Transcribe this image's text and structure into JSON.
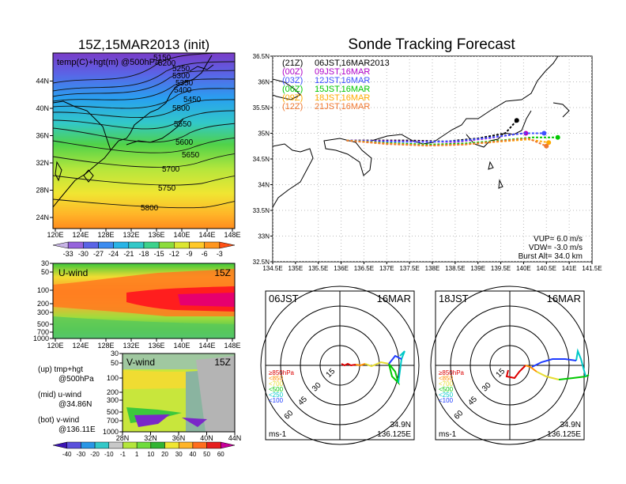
{
  "init_title": "15Z,15MAR2013 (init)",
  "main_title": "Sonde Tracking Forecast",
  "top_map": {
    "label": "temp(C)+hgt(m) @500hPa",
    "x_ticks": [
      "120E",
      "124E",
      "128E",
      "132E",
      "136E",
      "140E",
      "144E",
      "148E"
    ],
    "y_ticks": [
      "24N",
      "28N",
      "32N",
      "36N",
      "40N",
      "44N"
    ],
    "contours": [
      "5150",
      "5200",
      "5250",
      "5300",
      "5350",
      "5400",
      "5450",
      "5500",
      "5550",
      "5600",
      "5650",
      "5700",
      "5750",
      "5800"
    ],
    "colorbar": [
      "-33",
      "-30",
      "-27",
      "-24",
      "-21",
      "-18",
      "-15",
      "-12",
      "-9",
      "-6",
      "-3"
    ]
  },
  "u_panel": {
    "label": "U-wind",
    "time": "15Z",
    "y_ticks": [
      "30",
      "50",
      "100",
      "200",
      "300",
      "500",
      "700",
      "1000"
    ],
    "x_ticks": [
      "120E",
      "124E",
      "128E",
      "132E",
      "136E",
      "140E",
      "144E",
      "148E"
    ]
  },
  "v_panel": {
    "label": "V-wind",
    "time": "15Z",
    "y_ticks": [
      "30",
      "50",
      "100",
      "200",
      "300",
      "500",
      "700",
      "1000"
    ],
    "x_ticks": [
      "28N",
      "32N",
      "36N",
      "40N",
      "44N"
    ]
  },
  "notes": [
    {
      "a": "(up) tmp+hgt",
      "b": "@500hPa"
    },
    {
      "a": "(mid) u-wind",
      "b": "@34.86N"
    },
    {
      "a": "(bot) v-wind",
      "b": "@136.11E"
    }
  ],
  "wind_colorbar": [
    "-40",
    "-30",
    "-20",
    "-10",
    "-1",
    "1",
    "10",
    "20",
    "30",
    "40",
    "50",
    "60"
  ],
  "track_map": {
    "x_ticks": [
      "134.5E",
      "135E",
      "135.5E",
      "136E",
      "136.5E",
      "137E",
      "137.5E",
      "138E",
      "138.5E",
      "139E",
      "139.5E",
      "140E",
      "140.5E",
      "141E",
      "141.5E"
    ],
    "y_ticks": [
      "36.5N",
      "36N",
      "35.5N",
      "35N",
      "34.5N",
      "34N",
      "33.5N",
      "33N",
      "32.5N"
    ],
    "legend": [
      {
        "run": "(21Z)",
        "label": "06JST,16MAR2013",
        "color": "#000000"
      },
      {
        "run": "(00Z)",
        "label": "09JST,16MAR",
        "color": "#b000c8"
      },
      {
        "run": "(03Z)",
        "label": "12JST,16MAR",
        "color": "#3c50ff"
      },
      {
        "run": "(06Z)",
        "label": "15JST,16MAR",
        "color": "#00c800"
      },
      {
        "run": "(09Z)",
        "label": "18JST,16MAR",
        "color": "#ffaa00"
      },
      {
        "run": "(12Z)",
        "label": "21JST,16MAR",
        "color": "#f07830"
      }
    ],
    "params": [
      "VUP= 6.0 m/s",
      "VDW= -3.0 m/s",
      "Burst Alt= 34.0 km"
    ]
  },
  "chart_data": [
    {
      "type": "line",
      "title": "Sonde Tracking Forecast",
      "xlim": [
        134.5,
        141.5
      ],
      "ylim": [
        32.5,
        36.5
      ],
      "series": [
        {
          "name": "06JST,16MAR2013",
          "x": [
            136.12,
            136.8,
            137.5,
            138.3,
            139.0,
            139.6,
            139.85
          ],
          "y": [
            34.86,
            34.86,
            34.86,
            34.84,
            34.9,
            35.0,
            35.25
          ]
        },
        {
          "name": "09JST,16MAR",
          "x": [
            136.12,
            136.9,
            137.7,
            138.5,
            139.2,
            139.8,
            140.05
          ],
          "y": [
            34.86,
            34.85,
            34.84,
            34.83,
            34.9,
            34.98,
            35.0
          ]
        },
        {
          "name": "12JST,16MAR",
          "x": [
            136.12,
            137.0,
            137.8,
            138.6,
            139.3,
            140.0,
            140.45
          ],
          "y": [
            34.86,
            34.84,
            34.83,
            34.85,
            34.92,
            35.0,
            35.0
          ]
        },
        {
          "name": "15JST,16MAR",
          "x": [
            136.12,
            137.0,
            137.9,
            138.7,
            139.5,
            140.2,
            140.75
          ],
          "y": [
            34.86,
            34.81,
            34.78,
            34.8,
            34.86,
            34.92,
            34.92
          ]
        },
        {
          "name": "18JST,16MAR",
          "x": [
            136.12,
            137.0,
            137.9,
            138.7,
            139.5,
            140.1,
            140.55
          ],
          "y": [
            34.86,
            34.8,
            34.76,
            34.78,
            34.84,
            34.88,
            34.82
          ]
        },
        {
          "name": "21JST,16MAR",
          "x": [
            136.12,
            137.0,
            137.9,
            138.7,
            139.5,
            140.1,
            140.5
          ],
          "y": [
            34.86,
            34.79,
            34.76,
            34.78,
            34.85,
            34.9,
            34.75
          ]
        }
      ]
    },
    {
      "type": "line",
      "title": "06JST 16MAR",
      "rings": [
        "15",
        "30",
        "45",
        "60"
      ],
      "levels": [
        {
          "name": "≥850hPa",
          "color": "#dc0000"
        },
        {
          "name": "<850",
          "color": "#ff8c00"
        },
        {
          "name": "<700",
          "color": "#e6dc32"
        },
        {
          "name": "<500",
          "color": "#00c800"
        },
        {
          "name": "<250",
          "color": "#00c8c8"
        },
        {
          "name": "<100",
          "color": "#1e3cff"
        }
      ],
      "unit": "ms-1",
      "location": [
        "34.9N",
        "136.125E"
      ]
    },
    {
      "type": "line",
      "title": "18JST 16MAR",
      "rings": [
        "15",
        "30",
        "45",
        "60"
      ],
      "unit": "ms-1",
      "location": [
        "34.9N",
        "136.125E"
      ]
    }
  ]
}
